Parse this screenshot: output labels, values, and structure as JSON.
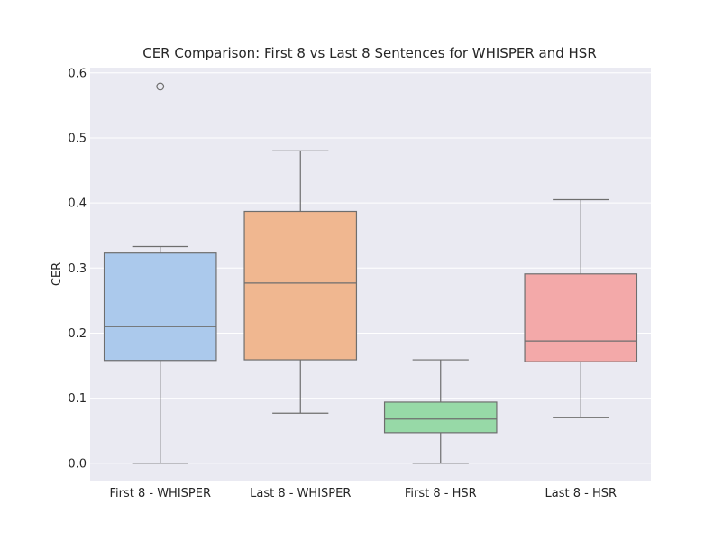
{
  "chart_data": {
    "type": "box",
    "title": "CER Comparison: First 8 vs Last 8 Sentences for WHISPER and HSR",
    "xlabel": "",
    "ylabel": "CER",
    "ylim": [
      -0.028,
      0.608
    ],
    "y_ticks": [
      "0.0",
      "0.1",
      "0.2",
      "0.3",
      "0.4",
      "0.5",
      "0.6"
    ],
    "y_tick_values": [
      0.0,
      0.1,
      0.2,
      0.3,
      0.4,
      0.5,
      0.6
    ],
    "grid": true,
    "categories": [
      "First 8 - WHISPER",
      "Last 8 - WHISPER",
      "First 8 - HSR",
      "Last 8 - HSR"
    ],
    "boxes": [
      {
        "whisker_low": 0.0,
        "q1": 0.158,
        "median": 0.21,
        "q3": 0.323,
        "whisker_high": 0.333,
        "outliers": [
          0.579
        ],
        "color": "#abc9ec"
      },
      {
        "whisker_low": 0.077,
        "q1": 0.159,
        "median": 0.277,
        "q3": 0.387,
        "whisker_high": 0.48,
        "outliers": [],
        "color": "#f0b790"
      },
      {
        "whisker_low": 0.0,
        "q1": 0.047,
        "median": 0.068,
        "q3": 0.094,
        "whisker_high": 0.159,
        "outliers": [],
        "color": "#97d9a7"
      },
      {
        "whisker_low": 0.07,
        "q1": 0.156,
        "median": 0.188,
        "q3": 0.291,
        "whisker_high": 0.405,
        "outliers": [],
        "color": "#f3a9a9"
      }
    ],
    "colors": {
      "plot_background": "#eaeaf2",
      "grid": "#ffffff",
      "lines": "#6e6e6e",
      "text": "#262626"
    }
  }
}
